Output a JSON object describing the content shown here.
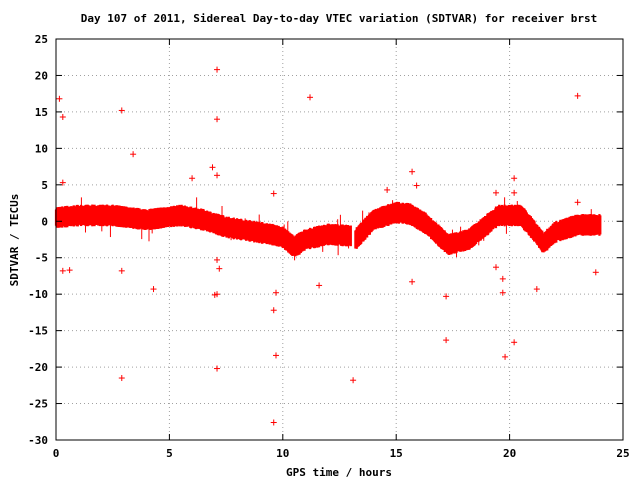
{
  "chart_data": {
    "type": "scatter",
    "title": "Day 107 of 2011, Sidereal Day-to-day VTEC variation (SDTVAR) for receiver brst",
    "xlabel": "GPS time / hours",
    "ylabel": "SDTVAR / TECUs",
    "xlim": [
      0,
      25
    ],
    "ylim": [
      -30,
      25
    ],
    "xticks": [
      0,
      5,
      10,
      15,
      20,
      25
    ],
    "yticks": [
      -30,
      -25,
      -20,
      -15,
      -10,
      -5,
      0,
      5,
      10,
      15,
      20,
      25
    ],
    "grid": true,
    "marker": "+",
    "color": "#ff0000",
    "band_segments": [
      {
        "x_start": 0.0,
        "x_end": 13.0,
        "center": [
          [
            0.0,
            0.5
          ],
          [
            1.0,
            0.8
          ],
          [
            2.5,
            0.8
          ],
          [
            4.0,
            0.2
          ],
          [
            5.5,
            0.8
          ],
          [
            6.5,
            0.2
          ],
          [
            7.5,
            -0.8
          ],
          [
            8.5,
            -1.3
          ],
          [
            9.5,
            -1.8
          ],
          [
            10.0,
            -2.2
          ],
          [
            10.5,
            -3.5
          ],
          [
            11.0,
            -2.5
          ],
          [
            12.0,
            -1.8
          ],
          [
            13.0,
            -2.0
          ]
        ],
        "half_width": 1.3
      },
      {
        "x_start": 13.2,
        "x_end": 24.0,
        "center": [
          [
            13.2,
            -2.5
          ],
          [
            14.0,
            0.2
          ],
          [
            15.0,
            1.2
          ],
          [
            15.6,
            1.0
          ],
          [
            16.3,
            -0.3
          ],
          [
            17.3,
            -3.2
          ],
          [
            18.2,
            -2.5
          ],
          [
            19.0,
            -0.5
          ],
          [
            19.5,
            0.8
          ],
          [
            20.5,
            0.8
          ],
          [
            21.0,
            -1.0
          ],
          [
            21.5,
            -3.0
          ],
          [
            22.0,
            -1.5
          ],
          [
            23.0,
            -0.5
          ],
          [
            24.0,
            -0.5
          ]
        ],
        "half_width": 1.3
      }
    ],
    "outliers": [
      {
        "x": 0.15,
        "y": 16.8
      },
      {
        "x": 0.3,
        "y": 14.3
      },
      {
        "x": 0.3,
        "y": 5.3
      },
      {
        "x": 0.3,
        "y": -6.8
      },
      {
        "x": 0.6,
        "y": -6.7
      },
      {
        "x": 2.9,
        "y": 15.2
      },
      {
        "x": 2.9,
        "y": -6.8
      },
      {
        "x": 2.9,
        "y": -21.5
      },
      {
        "x": 3.4,
        "y": 9.2
      },
      {
        "x": 4.3,
        "y": -9.3
      },
      {
        "x": 6.0,
        "y": 5.9
      },
      {
        "x": 6.9,
        "y": 7.4
      },
      {
        "x": 7.1,
        "y": 20.8
      },
      {
        "x": 7.1,
        "y": 14.0
      },
      {
        "x": 7.1,
        "y": 6.3
      },
      {
        "x": 7.1,
        "y": -5.3
      },
      {
        "x": 7.0,
        "y": -10.1
      },
      {
        "x": 7.1,
        "y": -10.0
      },
      {
        "x": 7.1,
        "y": -20.2
      },
      {
        "x": 7.2,
        "y": -6.5
      },
      {
        "x": 9.6,
        "y": 3.8
      },
      {
        "x": 9.7,
        "y": -9.8
      },
      {
        "x": 9.6,
        "y": -12.2
      },
      {
        "x": 9.7,
        "y": -18.4
      },
      {
        "x": 9.6,
        "y": -27.6
      },
      {
        "x": 11.2,
        "y": 17.0
      },
      {
        "x": 11.6,
        "y": -8.8
      },
      {
        "x": 13.1,
        "y": -21.8
      },
      {
        "x": 14.6,
        "y": 4.3
      },
      {
        "x": 15.7,
        "y": 6.8
      },
      {
        "x": 15.7,
        "y": -8.3
      },
      {
        "x": 15.9,
        "y": 4.9
      },
      {
        "x": 17.2,
        "y": -16.3
      },
      {
        "x": 19.4,
        "y": 3.9
      },
      {
        "x": 19.4,
        "y": -6.3
      },
      {
        "x": 19.7,
        "y": -9.8
      },
      {
        "x": 19.8,
        "y": -18.6
      },
      {
        "x": 20.2,
        "y": 5.9
      },
      {
        "x": 20.2,
        "y": 3.9
      },
      {
        "x": 20.2,
        "y": -16.6
      },
      {
        "x": 23.0,
        "y": 17.2
      },
      {
        "x": 23.0,
        "y": 2.6
      },
      {
        "x": 23.8,
        "y": -7.0
      },
      {
        "x": 21.2,
        "y": -9.3
      },
      {
        "x": 17.2,
        "y": -10.3
      },
      {
        "x": 19.7,
        "y": -7.9
      }
    ]
  }
}
